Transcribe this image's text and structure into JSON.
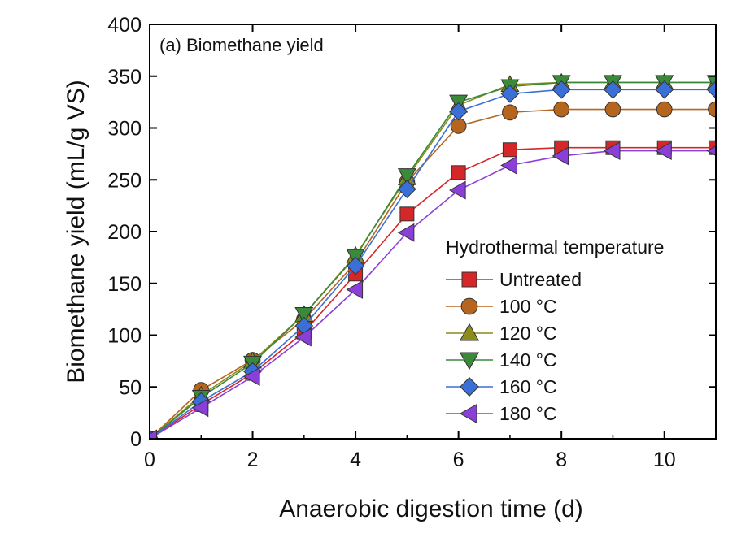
{
  "chart_data": {
    "type": "line",
    "panel_title": "(a) Biomethane yield",
    "xlabel": "Anaerobic digestion time (d)",
    "ylabel": "Biomethane yield (mL/g VS)",
    "xlim": [
      0,
      11
    ],
    "ylim": [
      0,
      400
    ],
    "xticks": [
      0,
      2,
      4,
      6,
      8,
      10
    ],
    "yticks": [
      0,
      50,
      100,
      150,
      200,
      250,
      300,
      350,
      400
    ],
    "xtick_labels": [
      "0",
      "2",
      "4",
      "6",
      "8",
      "10"
    ],
    "ytick_labels": [
      "0",
      "50",
      "100",
      "150",
      "200",
      "250",
      "300",
      "350",
      "400"
    ],
    "x": [
      0,
      1,
      2,
      3,
      4,
      5,
      6,
      7,
      8,
      9,
      10,
      11
    ],
    "legend_title": "Hydrothermal temperature",
    "legend_position": "center-right",
    "series": [
      {
        "name": "Untreated",
        "marker": "square",
        "color": "#d62728",
        "values": [
          0,
          33,
          63,
          103,
          159,
          217,
          257,
          279,
          281,
          281,
          281,
          281
        ]
      },
      {
        "name": "100 °C",
        "marker": "circle",
        "color": "#b5651d",
        "values": [
          0,
          47,
          76,
          115,
          170,
          248,
          302,
          315,
          318,
          318,
          318,
          318
        ]
      },
      {
        "name": "120 °C",
        "marker": "triangle-up",
        "color": "#8c8c1a",
        "values": [
          0,
          42,
          75,
          120,
          177,
          252,
          322,
          342,
          344,
          344,
          344,
          344
        ]
      },
      {
        "name": "140 °C",
        "marker": "triangle-down",
        "color": "#3a8a3a",
        "values": [
          0,
          40,
          73,
          120,
          176,
          254,
          325,
          340,
          344,
          344,
          344,
          344
        ]
      },
      {
        "name": "160 °C",
        "marker": "diamond",
        "color": "#3b6fd8",
        "values": [
          0,
          36,
          65,
          109,
          167,
          241,
          316,
          333,
          337,
          337,
          337,
          337
        ]
      },
      {
        "name": "180 °C",
        "marker": "triangle-left",
        "color": "#8a3fd8",
        "values": [
          0,
          30,
          60,
          98,
          144,
          199,
          240,
          264,
          273,
          278,
          278,
          278
        ]
      }
    ]
  }
}
